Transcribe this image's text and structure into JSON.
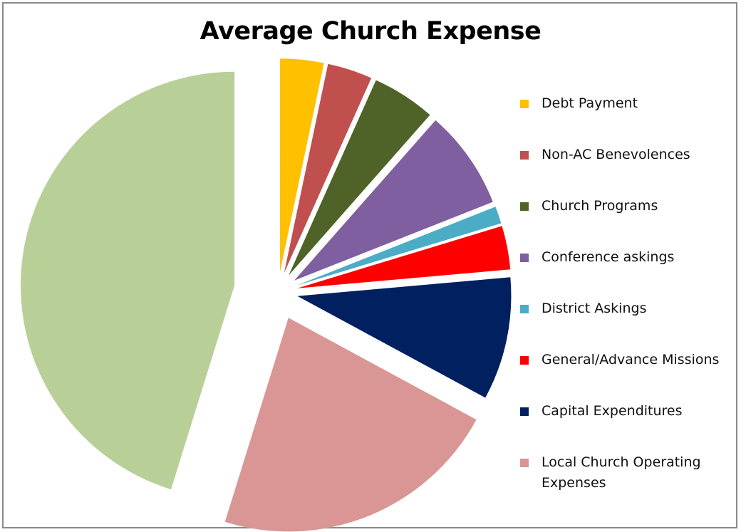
{
  "chart_data": {
    "type": "pie",
    "title": "Average Church Expense",
    "legend_position": "right",
    "exploded": true,
    "slices": [
      {
        "label": "Debt Payment",
        "value": 3.3,
        "color": "#FFC000"
      },
      {
        "label": "Non-AC Benevolences",
        "value": 3.4,
        "color": "#C0504D"
      },
      {
        "label": "Church Programs",
        "value": 4.8,
        "color": "#4F6228"
      },
      {
        "label": "Conference askings",
        "value": 7.5,
        "color": "#7F5F9F"
      },
      {
        "label": "District Askings",
        "value": 1.3,
        "color": "#4BACC6"
      },
      {
        "label": "General/Advance Missions",
        "value": 3.3,
        "color": "#FF0000"
      },
      {
        "label": "Capital Expenditures",
        "value": 9.3,
        "color": "#002060"
      },
      {
        "label": "Local Church Operating Expenses",
        "value": 21.9,
        "color": "#D99694"
      },
      {
        "value": 45.2,
        "color": "#B9CF98"
      }
    ]
  }
}
